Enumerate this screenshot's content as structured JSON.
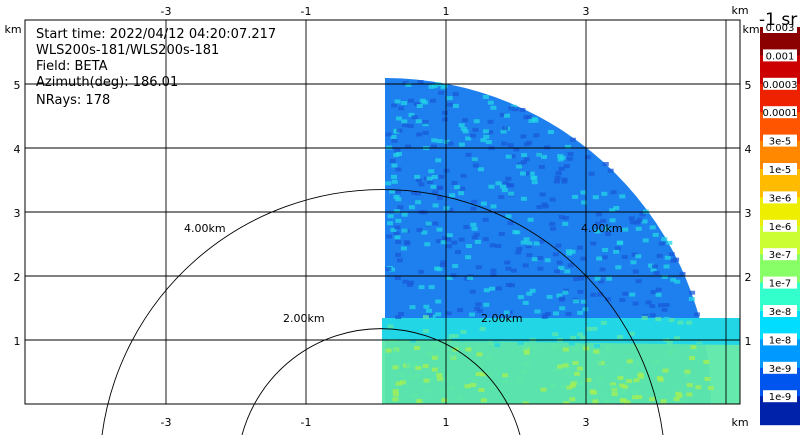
{
  "info": {
    "start_time": "Start time: 2022/04/12 04:20:07.217",
    "instrument": "WLS200s-181/WLS200s-181",
    "field": "Field: BETA",
    "azimuth": "Azimuth(deg): 186.01",
    "nrays": "NRays: 178"
  },
  "axes": {
    "unit": "km",
    "x_ticks": [
      "-3",
      "-1",
      "1",
      "3"
    ],
    "y_ticks": [
      "5",
      "4",
      "3",
      "2",
      "1"
    ]
  },
  "rings": [
    "2.00km",
    "4.00km"
  ],
  "colorbar": {
    "title": "-1 sr",
    "labels": [
      "0.003",
      "0.001",
      "0.0003",
      "0.0001",
      "3e-5",
      "1e-5",
      "3e-6",
      "1e-6",
      "3e-7",
      "1e-7",
      "3e-8",
      "1e-8",
      "3e-9",
      "1e-9"
    ],
    "colors": [
      "#8b0000",
      "#cc0000",
      "#ee2200",
      "#ff5500",
      "#ff8800",
      "#ffbb00",
      "#eeee00",
      "#ccff33",
      "#88ff66",
      "#33ffcc",
      "#00ddff",
      "#0099ff",
      "#0055ee",
      "#0022aa"
    ]
  },
  "field_colors": {
    "low_band": "#5ee8a8",
    "mid_band": "#22d6e6",
    "upper": "#1e80ee",
    "dark": "#1a5ad8",
    "speckle": "#a8f050"
  }
}
